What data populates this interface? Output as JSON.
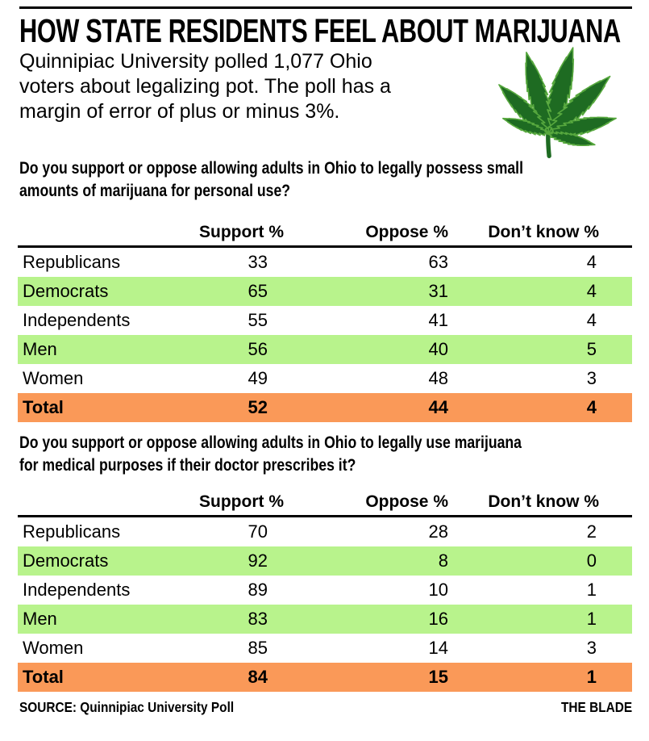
{
  "header": {
    "title": "HOW STATE RESIDENTS FEEL ABOUT MARIJUANA",
    "subtitle": "Quinnipiac University polled 1,077 Ohio voters about legalizing pot. The poll has a margin of error of plus or minus 3%.",
    "subtitle_lines": [
      "Quinnipiac University polled 1,077 Ohio",
      "voters about legalizing pot. The poll has a",
      "margin of error of plus or minus 3%."
    ],
    "leaf_icon": "marijuana-leaf"
  },
  "chart_data": [
    {
      "type": "table",
      "title": "Do you support or oppose allowing adults in Ohio to legally possess small amounts of marijuana for personal use?",
      "title_lines": [
        "Do you support or oppose allowing adults in Ohio to legally possess small",
        "amounts of marijuana for personal use?"
      ],
      "columns": [
        "Support %",
        "Oppose %",
        "Don’t know %"
      ],
      "rows": [
        {
          "label": "Republicans",
          "support": 33,
          "oppose": 63,
          "dont_know": 4,
          "highlight": "none"
        },
        {
          "label": "Democrats",
          "support": 65,
          "oppose": 31,
          "dont_know": 4,
          "highlight": "green"
        },
        {
          "label": "Independents",
          "support": 55,
          "oppose": 41,
          "dont_know": 4,
          "highlight": "none"
        },
        {
          "label": "Men",
          "support": 56,
          "oppose": 40,
          "dont_know": 5,
          "highlight": "green"
        },
        {
          "label": "Women",
          "support": 49,
          "oppose": 48,
          "dont_know": 3,
          "highlight": "none"
        },
        {
          "label": "Total",
          "support": 52,
          "oppose": 44,
          "dont_know": 4,
          "highlight": "orange",
          "bold": true
        }
      ]
    },
    {
      "type": "table",
      "title": "Do you support or oppose allowing adults in Ohio to legally use marijuana for medical purposes if their doctor prescribes it?",
      "title_lines": [
        "Do you support or oppose allowing adults in Ohio to legally use marijuana",
        "for medical purposes if their doctor prescribes it?"
      ],
      "columns": [
        "Support %",
        "Oppose %",
        "Don’t know %"
      ],
      "rows": [
        {
          "label": "Republicans",
          "support": 70,
          "oppose": 28,
          "dont_know": 2,
          "highlight": "none"
        },
        {
          "label": "Democrats",
          "support": 92,
          "oppose": 8,
          "dont_know": 0,
          "highlight": "green"
        },
        {
          "label": "Independents",
          "support": 89,
          "oppose": 10,
          "dont_know": 1,
          "highlight": "none"
        },
        {
          "label": "Men",
          "support": 83,
          "oppose": 16,
          "dont_know": 1,
          "highlight": "green"
        },
        {
          "label": "Women",
          "support": 85,
          "oppose": 14,
          "dont_know": 3,
          "highlight": "none"
        },
        {
          "label": "Total",
          "support": 84,
          "oppose": 15,
          "dont_know": 1,
          "highlight": "orange",
          "bold": true
        }
      ]
    }
  ],
  "footer": {
    "source": "SOURCE: Quinnipiac University Poll",
    "credit": "THE BLADE"
  },
  "colors": {
    "row_green": "#b8f38c",
    "row_orange": "#fa9958",
    "leaf_green": "#1e6b22",
    "leaf_edge": "#57a83e",
    "rule_black": "#000000"
  }
}
